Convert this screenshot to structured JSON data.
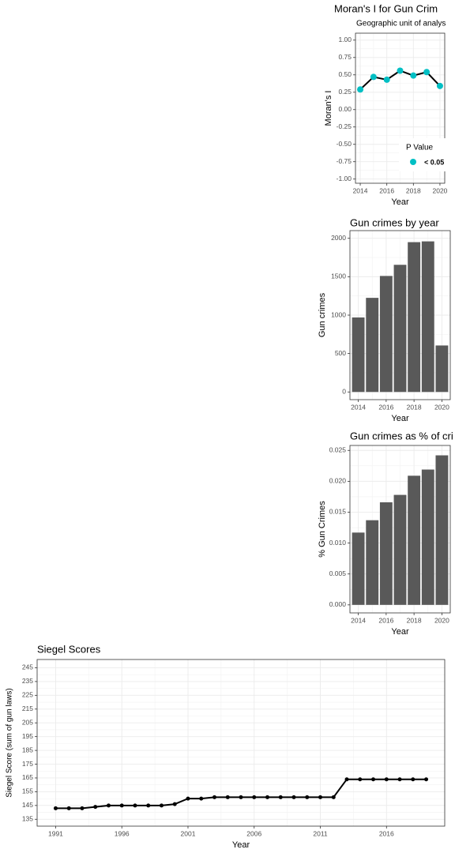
{
  "chart_data": [
    {
      "type": "line",
      "title": "Moran's I for Gun Crim",
      "subtitle": "Geographic unit of analys",
      "xlabel": "Year",
      "ylabel": "Moran's I",
      "x": [
        2014,
        2015,
        2016,
        2017,
        2018,
        2019,
        2020
      ],
      "series": [
        {
          "name": "< 0.05",
          "color": "#00bfc4",
          "line_color": "#000000",
          "values": [
            0.29,
            0.47,
            0.43,
            0.56,
            0.49,
            0.54,
            0.34
          ]
        }
      ],
      "legend_title": "P Value",
      "legend": "bottom-right",
      "xlim": [
        2013.64,
        2020.36
      ],
      "xticks": [
        2014,
        2016,
        2018,
        2020
      ],
      "ylim": [
        -1.06,
        1.1
      ],
      "yticks": [
        {
          "value": -1,
          "label": "-1.00"
        },
        {
          "value": -0.75,
          "label": "-0.75"
        },
        {
          "value": -0.5,
          "label": "-0.50"
        },
        {
          "value": -0.25,
          "label": "-0.25"
        },
        {
          "value": 0,
          "label": "0.00"
        },
        {
          "value": 0.25,
          "label": "0.25"
        },
        {
          "value": 0.5,
          "label": "0.50"
        },
        {
          "value": 0.75,
          "label": "0.75"
        },
        {
          "value": 1,
          "label": "1.00"
        }
      ],
      "grid": true
    },
    {
      "type": "bar",
      "title": "Gun crimes by year",
      "xlabel": "Year",
      "ylabel": "Gun crimes",
      "x": [
        2014,
        2015,
        2016,
        2017,
        2018,
        2019,
        2020
      ],
      "values": [
        970,
        1225,
        1510,
        1655,
        1950,
        1960,
        605
      ],
      "color": "#595959",
      "xlim": [
        2013.4,
        2020.6
      ],
      "xticks": [
        2014,
        2016,
        2018,
        2020
      ],
      "ylim": [
        -100,
        2100
      ],
      "yticks": [
        0,
        500,
        1000,
        1500,
        2000
      ],
      "grid": true
    },
    {
      "type": "bar",
      "title": "Gun crimes as % of cri",
      "xlabel": "Year",
      "ylabel": "% Gun Crimes",
      "x": [
        2014,
        2015,
        2016,
        2017,
        2018,
        2019,
        2020
      ],
      "values": [
        0.0117,
        0.0137,
        0.0166,
        0.0178,
        0.0209,
        0.0219,
        0.0242
      ],
      "color": "#595959",
      "xlim": [
        2013.4,
        2020.6
      ],
      "xticks": [
        2014,
        2016,
        2018,
        2020
      ],
      "ylim": [
        -0.0013,
        0.0258
      ],
      "yticks": [
        {
          "value": 0,
          "label": "0.000"
        },
        {
          "value": 0.005,
          "label": "0.005"
        },
        {
          "value": 0.01,
          "label": "0.010"
        },
        {
          "value": 0.015,
          "label": "0.015"
        },
        {
          "value": 0.02,
          "label": "0.020"
        },
        {
          "value": 0.025,
          "label": "0.025"
        }
      ],
      "grid": true
    },
    {
      "type": "line",
      "title": "Siegel Scores",
      "xlabel": "Year",
      "ylabel": "Siegel Score (sum of gun laws)",
      "x": [
        1991,
        1992,
        1993,
        1994,
        1995,
        1996,
        1997,
        1998,
        1999,
        2000,
        2001,
        2002,
        2003,
        2004,
        2005,
        2006,
        2007,
        2008,
        2009,
        2010,
        2011,
        2012,
        2013,
        2014,
        2015,
        2016,
        2017,
        2018,
        2019
      ],
      "series": [
        {
          "color": "#000000",
          "line_color": "#000000",
          "values": [
            143,
            143,
            143,
            144,
            145,
            145,
            145,
            145,
            145,
            146,
            150,
            150,
            151,
            151,
            151,
            151,
            151,
            151,
            151,
            151,
            151,
            151,
            164,
            164,
            164,
            164,
            164,
            164,
            164
          ]
        }
      ],
      "xlim": [
        1989.6,
        2020.4
      ],
      "xticks": [
        1991,
        1996,
        2001,
        2006,
        2011,
        2016
      ],
      "ylim": [
        130,
        251
      ],
      "yticks": [
        135,
        145,
        155,
        165,
        175,
        185,
        195,
        205,
        215,
        225,
        235,
        245
      ],
      "grid": true
    }
  ]
}
